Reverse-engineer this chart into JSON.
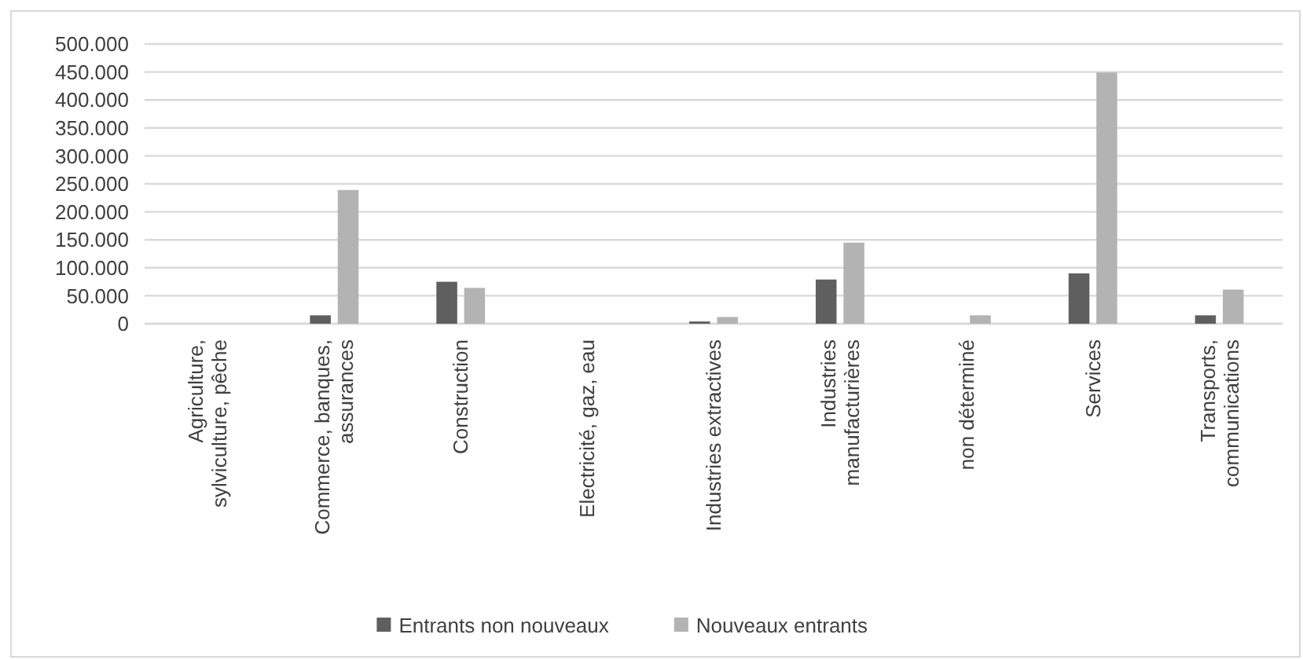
{
  "chart_data": {
    "type": "bar",
    "categories": [
      "Agriculture, sylviculture, pêche",
      "Commerce, banques, assurances",
      "Construction",
      "Electricité, gaz, eau",
      "Industries extractives",
      "Industries manufacturières",
      "non déterminé",
      "Services",
      "Transports, communications"
    ],
    "series": [
      {
        "name": "Entrants non nouveaux",
        "color": "#5f5f5f",
        "values": [
          0,
          15000,
          75000,
          0,
          4000,
          79000,
          0,
          90000,
          15000
        ]
      },
      {
        "name": "Nouveaux entrants",
        "color": "#b3b3b3",
        "values": [
          0,
          239000,
          64000,
          0,
          12000,
          145000,
          15000,
          449000,
          61000
        ]
      }
    ],
    "ylim": [
      0,
      500000
    ],
    "yticks": [
      {
        "value": 0,
        "label": "0"
      },
      {
        "value": 50000,
        "label": "50.000"
      },
      {
        "value": 100000,
        "label": "100.000"
      },
      {
        "value": 150000,
        "label": "150.000"
      },
      {
        "value": 200000,
        "label": "200.000"
      },
      {
        "value": 250000,
        "label": "250.000"
      },
      {
        "value": 300000,
        "label": "300.000"
      },
      {
        "value": 350000,
        "label": "350.000"
      },
      {
        "value": 400000,
        "label": "400.000"
      },
      {
        "value": 450000,
        "label": "450.000"
      },
      {
        "value": 500000,
        "label": "500.000"
      }
    ],
    "grid": "y",
    "legend": "bottom"
  }
}
